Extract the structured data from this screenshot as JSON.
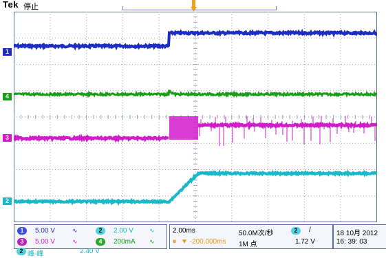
{
  "scope": {
    "brand": "Tek",
    "run_state": "停止",
    "trigger_marker": "T"
  },
  "colors": {
    "ch1": "#1c2dbf",
    "ch2": "#18b9c9",
    "ch3": "#d21bcb",
    "ch4": "#1a9e1a",
    "grid": "#9aa3b8",
    "frame": "#5b6f9c"
  },
  "channel_markers": [
    {
      "id": "1",
      "color": "#1c2dbf"
    },
    {
      "id": "4",
      "color": "#1a9e1a"
    },
    {
      "id": "3",
      "color": "#d21bcb"
    },
    {
      "id": "2",
      "color": "#18b9c9"
    }
  ],
  "channels": {
    "ch1": {
      "id": "1",
      "scale": "5.00 V",
      "bw_icon": "bandwidth-limit-icon"
    },
    "ch2": {
      "id": "2",
      "scale": "2.00 V",
      "bw_icon": "bandwidth-limit-icon"
    },
    "ch3": {
      "id": "3",
      "scale": "5.00 V",
      "bw_icon": "bandwidth-limit-icon"
    },
    "ch4": {
      "id": "4",
      "scale": "200mA",
      "bw_icon": "bandwidth-limit-icon"
    }
  },
  "timebase": {
    "scale": "2.00ms",
    "sample_rate": "50.0M次/秒",
    "delay": "▼ -200.000ms",
    "record_length": "1M 点",
    "trigger_channel": "2",
    "trigger_slope": "/",
    "trigger_level": "1.72 V"
  },
  "datetime": {
    "date": "18 10月  2012",
    "time": "16: 39: 03"
  },
  "math": {
    "channel": "2",
    "label": "峰-峰",
    "value": "2.40 V"
  }
}
